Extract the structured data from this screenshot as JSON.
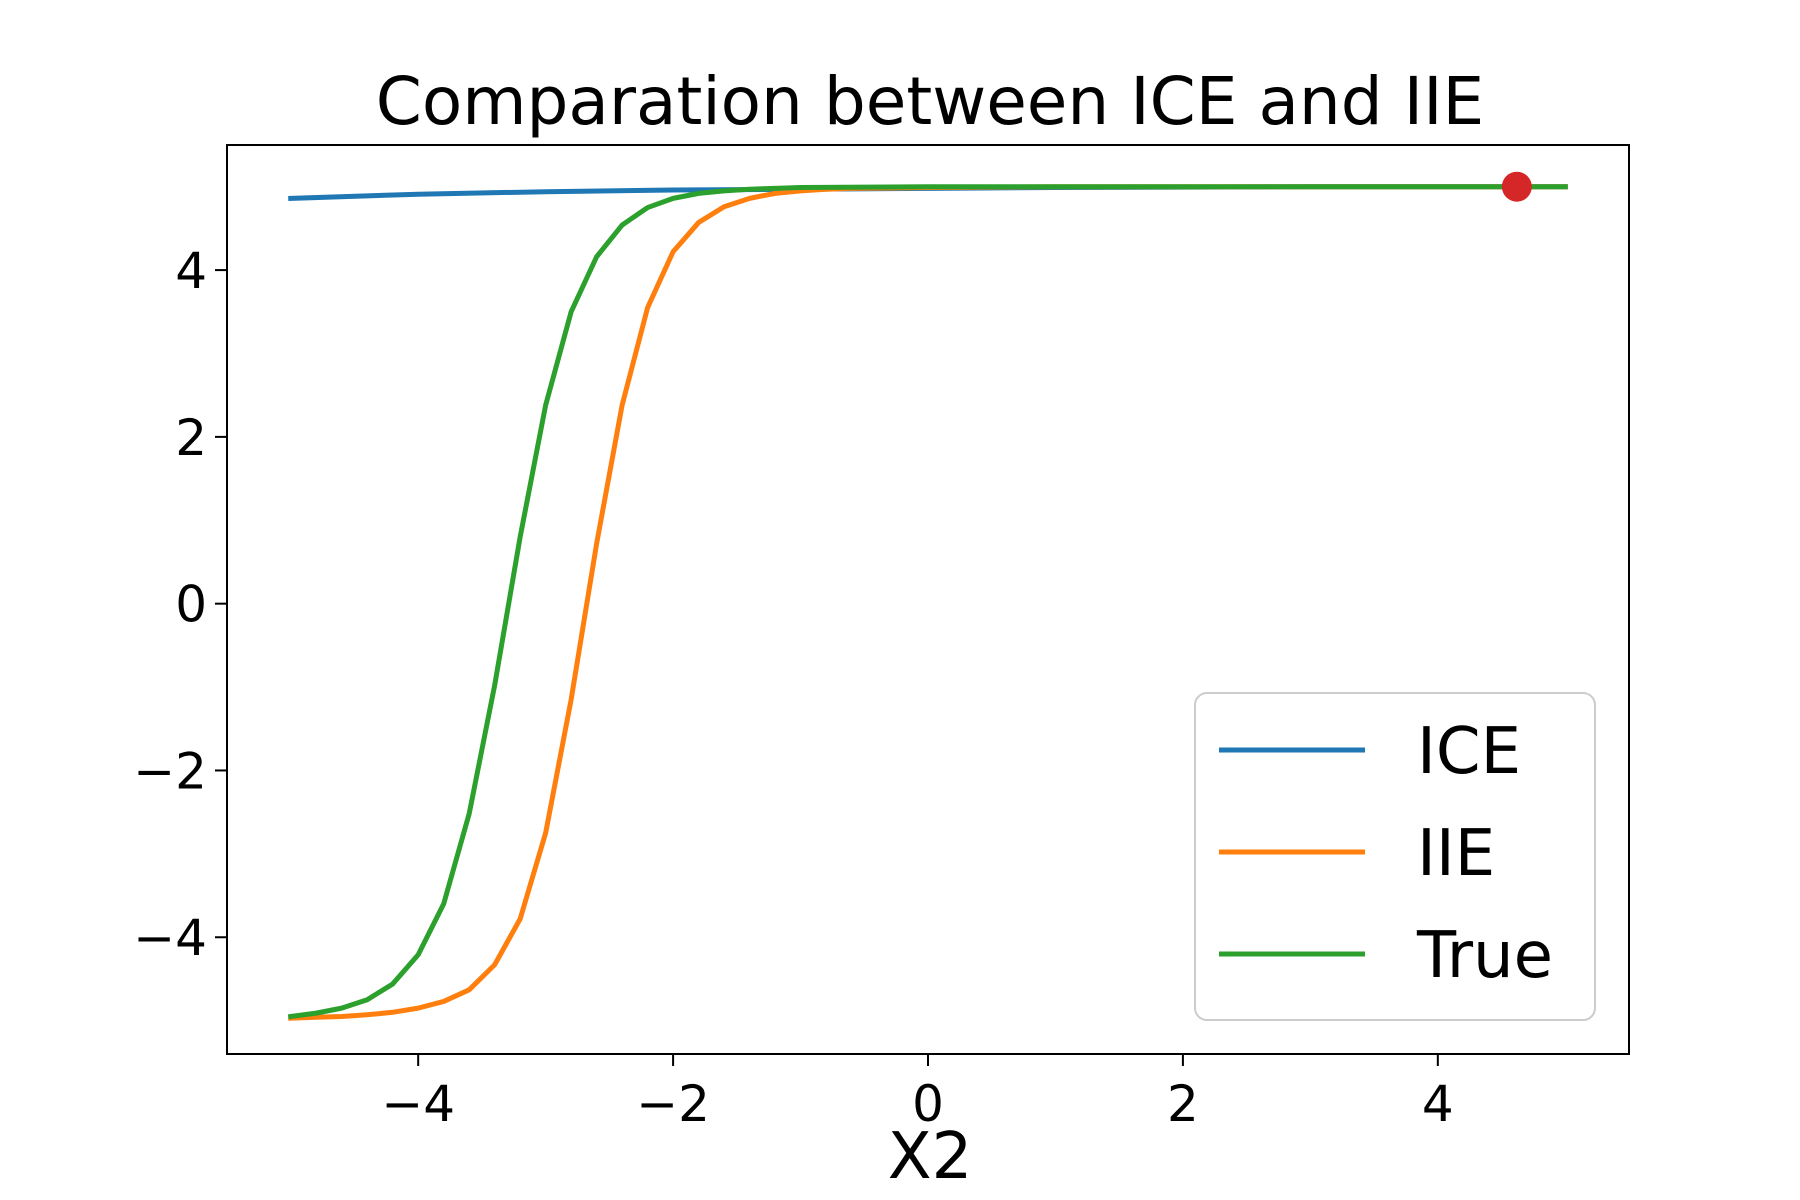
{
  "chart_data": {
    "type": "line",
    "title": "Comparation between ICE and IIE",
    "xlabel": "X2",
    "ylabel": "",
    "xlim": [
      -5.5,
      5.5
    ],
    "ylim": [
      -5.4,
      5.5
    ],
    "x_ticks": [
      -4,
      -2,
      0,
      2,
      4
    ],
    "y_ticks": [
      -4,
      -2,
      0,
      2,
      4
    ],
    "x_tick_labels": [
      "−4",
      "−2",
      "0",
      "2",
      "4"
    ],
    "y_tick_labels": [
      "−4",
      "−2",
      "0",
      "2",
      "4"
    ],
    "grid": false,
    "legend_position": "lower-right",
    "series": [
      {
        "name": "ICE",
        "color": "#1f77b4",
        "x": [
          -5.0,
          -4.0,
          -3.0,
          -2.0,
          -1.0,
          0.0,
          1.0,
          2.0,
          3.0,
          4.0,
          5.0
        ],
        "values": [
          4.86,
          4.91,
          4.94,
          4.96,
          4.97,
          4.98,
          4.99,
          4.995,
          5.0,
          5.0,
          5.0
        ]
      },
      {
        "name": "IIE",
        "color": "#ff7f0e",
        "x": [
          -5.0,
          -4.8,
          -4.6,
          -4.4,
          -4.2,
          -4.0,
          -3.8,
          -3.6,
          -3.4,
          -3.2,
          -3.0,
          -2.8,
          -2.6,
          -2.4,
          -2.2,
          -2.0,
          -1.8,
          -1.6,
          -1.4,
          -1.2,
          -1.0,
          -0.8,
          -0.6,
          0.0,
          1.0,
          2.0,
          3.0,
          4.0,
          5.0
        ],
        "values": [
          -4.97,
          -4.96,
          -4.95,
          -4.93,
          -4.9,
          -4.85,
          -4.77,
          -4.63,
          -4.33,
          -3.78,
          -2.75,
          -1.15,
          0.72,
          2.38,
          3.55,
          4.22,
          4.57,
          4.76,
          4.86,
          4.92,
          4.95,
          4.97,
          4.98,
          4.99,
          5.0,
          5.0,
          5.0,
          5.0,
          5.0
        ]
      },
      {
        "name": "True",
        "color": "#2ca02c",
        "x": [
          -5.0,
          -4.8,
          -4.6,
          -4.4,
          -4.2,
          -4.0,
          -3.8,
          -3.6,
          -3.4,
          -3.2,
          -3.0,
          -2.8,
          -2.6,
          -2.4,
          -2.2,
          -2.0,
          -1.8,
          -1.6,
          -1.4,
          -1.2,
          -1.0,
          0.0,
          1.0,
          2.0,
          3.0,
          4.0,
          5.0
        ],
        "values": [
          -4.95,
          -4.91,
          -4.85,
          -4.75,
          -4.56,
          -4.21,
          -3.6,
          -2.52,
          -0.98,
          0.8,
          2.38,
          3.5,
          4.16,
          4.54,
          4.75,
          4.86,
          4.92,
          4.95,
          4.97,
          4.98,
          4.99,
          5.0,
          5.0,
          5.0,
          5.0,
          5.0,
          5.0
        ]
      }
    ],
    "markers": [
      {
        "x": 4.62,
        "y": 5.0,
        "color": "#d62728"
      }
    ]
  }
}
